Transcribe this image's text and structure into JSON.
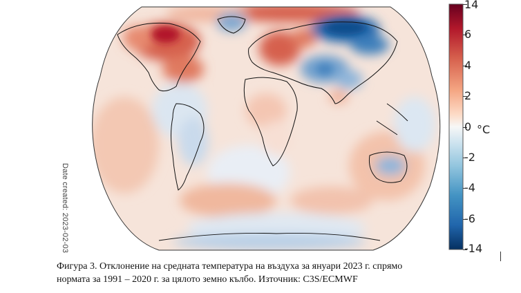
{
  "figure": {
    "title": "Фигура 3. Отклонение на средната температура на въздуха за януари 2023 г. спрямо",
    "title_line2": "нормата за 1991 – 2020 г. за цялото земно кълбо. Източник: C3S/ECMWF",
    "date_created": "Date created: 2023-02-03"
  },
  "colorbar": {
    "unit": "°C",
    "ticks": [
      "14",
      "6",
      "4",
      "2",
      "0",
      "-2",
      "-4",
      "-6",
      "-14"
    ],
    "tick_values": [
      14,
      6,
      4,
      2,
      0,
      -2,
      -4,
      -6,
      -14
    ],
    "colors": [
      "#053061",
      "#2166ac",
      "#4393c3",
      "#92c5de",
      "#d1e5f0",
      "#f7f7f7",
      "#fddbc7",
      "#f4a582",
      "#d6604d",
      "#b2182b",
      "#67001f"
    ]
  },
  "map": {
    "type": "world temperature anomaly map",
    "projection": "Robinson",
    "coastlines": "black",
    "ocean_anomaly_tone": "mostly light warm",
    "anomaly_regions": [
      {
        "region": "North America (east)",
        "sign": "warm",
        "strength": "strong"
      },
      {
        "region": "Europe",
        "sign": "warm",
        "strength": "strong"
      },
      {
        "region": "Central Siberia",
        "sign": "cold",
        "strength": "strong"
      },
      {
        "region": "Central Asia / China",
        "sign": "cold",
        "strength": "moderate"
      },
      {
        "region": "Australia",
        "sign": "cold",
        "strength": "moderate"
      },
      {
        "region": "Arctic",
        "sign": "warm",
        "strength": "moderate"
      },
      {
        "region": "Southern Ocean",
        "sign": "warm",
        "strength": "weak"
      },
      {
        "region": "Antarctica",
        "sign": "cold",
        "strength": "weak"
      }
    ]
  }
}
